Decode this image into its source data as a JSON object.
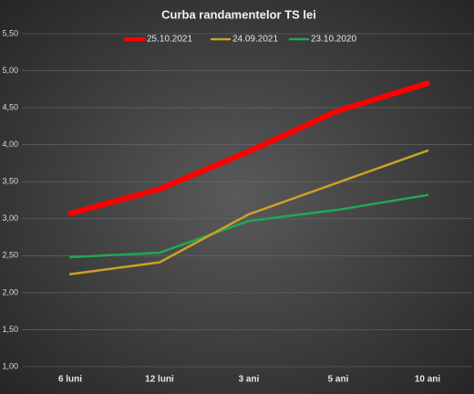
{
  "chart_data": {
    "type": "line",
    "title": "Curba  randamentelor  TS lei",
    "categories": [
      "6 luni",
      "12 luni",
      "3 ani",
      "5 ani",
      "10 ani"
    ],
    "series": [
      {
        "name": "25.10.2021",
        "color": "#ff0000",
        "values": [
          3.07,
          3.4,
          3.91,
          4.46,
          4.83
        ]
      },
      {
        "name": "24.09.2021",
        "color": "#c9a227",
        "values": [
          2.25,
          2.41,
          3.06,
          3.49,
          3.92
        ]
      },
      {
        "name": "23.10.2020",
        "color": "#1fa855",
        "values": [
          2.48,
          2.54,
          2.97,
          3.12,
          3.32
        ]
      }
    ],
    "ylim": [
      1.0,
      5.5
    ],
    "yticks": [
      {
        "value": 1.0,
        "label": "1,00"
      },
      {
        "value": 1.5,
        "label": "1,50"
      },
      {
        "value": 2.0,
        "label": "2,00"
      },
      {
        "value": 2.5,
        "label": "2,50"
      },
      {
        "value": 3.0,
        "label": "3,00"
      },
      {
        "value": 3.5,
        "label": "3,50"
      },
      {
        "value": 4.0,
        "label": "4,00"
      },
      {
        "value": 4.5,
        "label": "4,50"
      },
      {
        "value": 5.0,
        "label": "5,00"
      },
      {
        "value": 5.5,
        "label": "5,50"
      }
    ],
    "grid": true
  }
}
